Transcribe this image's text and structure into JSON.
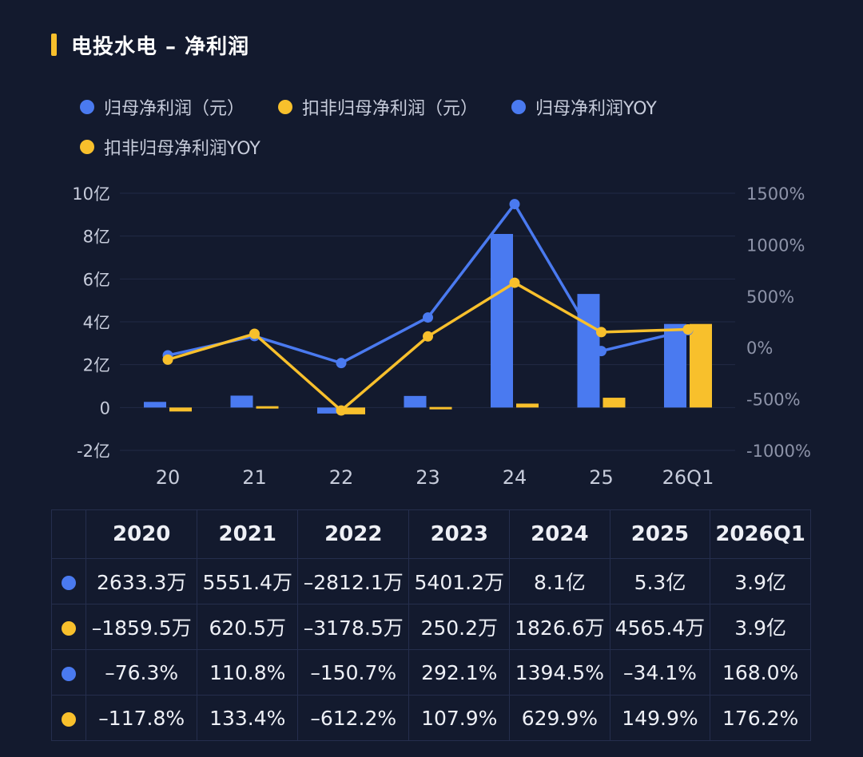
{
  "title": "电投水电 – 净利润",
  "colors": {
    "blue": "#4a7af0",
    "yellow": "#f8c02c",
    "accent": "#f8c02c",
    "background": "#131a2e"
  },
  "legend": [
    {
      "label": "归母净利润（元）",
      "color": "#4a7af0"
    },
    {
      "label": "扣非归母净利润（元）",
      "color": "#f8c02c"
    },
    {
      "label": "归母净利润YOY",
      "color": "#4a7af0"
    },
    {
      "label": "扣非归母净利润YOY",
      "color": "#f8c02c"
    }
  ],
  "chart_data": {
    "type": "bar+line",
    "categories": [
      "20",
      "21",
      "22",
      "23",
      "24",
      "25",
      "26Q1"
    ],
    "left_axis": {
      "ticks": [
        "10亿",
        "8亿",
        "6亿",
        "4亿",
        "2亿",
        "0",
        "-2亿"
      ],
      "range_yi": [
        -2,
        10
      ]
    },
    "right_axis": {
      "ticks": [
        "1500%",
        "1000%",
        "500%",
        "0%",
        "-500%",
        "-1000%"
      ],
      "range_pct": [
        -1000,
        1500
      ]
    },
    "bar_series": [
      {
        "name": "归母净利润（元）",
        "color": "#4a7af0",
        "values_yi": [
          0.263,
          0.555,
          -0.281,
          0.54,
          8.1,
          5.3,
          3.9
        ]
      },
      {
        "name": "扣非归母净利润（元）",
        "color": "#f8c02c",
        "values_yi": [
          -0.186,
          0.062,
          -0.318,
          0.025,
          0.183,
          0.457,
          3.9
        ]
      }
    ],
    "line_series": [
      {
        "name": "归母净利润YOY",
        "color": "#4a7af0",
        "values_pct": [
          -76.3,
          110.8,
          -150.7,
          292.1,
          1394.5,
          -34.1,
          168.0
        ]
      },
      {
        "name": "扣非归母净利润YOY",
        "color": "#f8c02c",
        "values_pct": [
          -117.8,
          133.4,
          -612.2,
          107.9,
          629.9,
          149.9,
          176.2
        ]
      }
    ]
  },
  "table": {
    "headers": [
      "2020",
      "2021",
      "2022",
      "2023",
      "2024",
      "2025",
      "2026Q1"
    ],
    "rows": [
      {
        "color": "#4a7af0",
        "cells": [
          "2633.3万",
          "5551.4万",
          "–2812.1万",
          "5401.2万",
          "8.1亿",
          "5.3亿",
          "3.9亿"
        ]
      },
      {
        "color": "#f8c02c",
        "cells": [
          "–1859.5万",
          "620.5万",
          "–3178.5万",
          "250.2万",
          "1826.6万",
          "4565.4万",
          "3.9亿"
        ]
      },
      {
        "color": "#4a7af0",
        "cells": [
          "–76.3%",
          "110.8%",
          "–150.7%",
          "292.1%",
          "1394.5%",
          "–34.1%",
          "168.0%"
        ]
      },
      {
        "color": "#f8c02c",
        "cells": [
          "–117.8%",
          "133.4%",
          "–612.2%",
          "107.9%",
          "629.9%",
          "149.9%",
          "176.2%"
        ]
      }
    ]
  }
}
